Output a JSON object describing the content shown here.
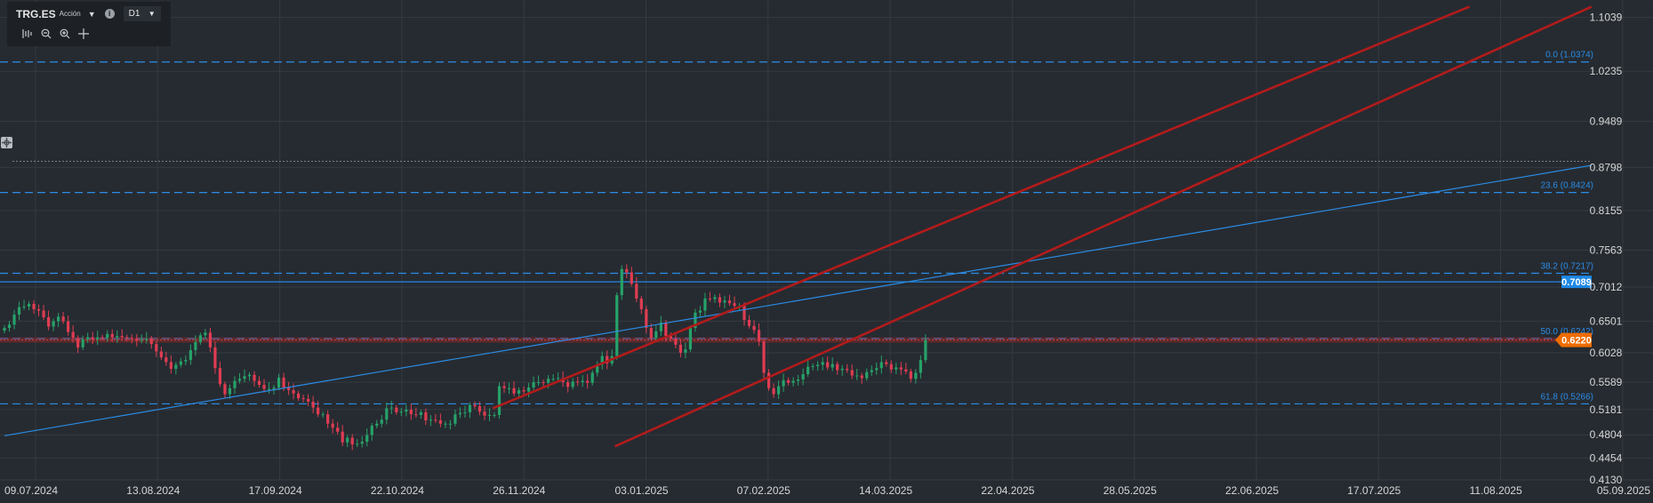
{
  "toolbar": {
    "symbol": "TRG.ES",
    "instrument_type": "Acción",
    "timeframe": "D1",
    "info_icon": "info-icon",
    "tools": [
      "auto-fit-icon",
      "zoom-out-icon",
      "zoom-in-icon",
      "crosshair-icon"
    ]
  },
  "colors": {
    "background": "#262b31",
    "grid": "#353a41",
    "bull": "#26a269",
    "bear": "#e03c52",
    "fib": "#2b8ce6",
    "trend_blue": "#2b8ce6",
    "channel_red": "#b31b1b",
    "price_tag": "#ef6c00",
    "level_tag": "#1e88e5",
    "axis_text": "#d6d6d6"
  },
  "chart_data": {
    "type": "candlestick",
    "x_ticks": [
      "09.07.2024",
      "13.08.2024",
      "17.09.2024",
      "22.10.2024",
      "26.11.2024",
      "03.01.2025",
      "07.02.2025",
      "14.03.2025",
      "22.04.2025",
      "28.05.2025",
      "22.06.2025",
      "17.07.2025",
      "11.08.2025",
      "05.09.2025"
    ],
    "y_ticks": [
      "1.1039",
      "1.0235",
      "0.9489",
      "0.8798",
      "0.8155",
      "0.7563",
      "0.7012",
      "0.6501",
      "0.6028",
      "0.5589",
      "0.5181",
      "0.4804",
      "0.4454",
      "0.4130"
    ],
    "ylim": [
      0.413,
      1.13
    ],
    "fib_levels": [
      {
        "label": "0.0 (1.0374)",
        "value": 1.0374
      },
      {
        "label": "23.6 (0.8424)",
        "value": 0.8424
      },
      {
        "label": "38.2 (0.7217)",
        "value": 0.7217
      },
      {
        "label": "50.0 (0.6242)",
        "value": 0.6242
      },
      {
        "label": "61.8 (0.5266)",
        "value": 0.5266
      }
    ],
    "horizontal_line": {
      "value": 0.7089,
      "label": "0.7089"
    },
    "current_price": {
      "value": 0.622,
      "label": "0.6220"
    },
    "closes": [
      0.64,
      0.645,
      0.66,
      0.671,
      0.672,
      0.676,
      0.668,
      0.666,
      0.656,
      0.642,
      0.65,
      0.657,
      0.65,
      0.634,
      0.625,
      0.611,
      0.623,
      0.626,
      0.623,
      0.626,
      0.625,
      0.631,
      0.626,
      0.628,
      0.626,
      0.625,
      0.624,
      0.621,
      0.622,
      0.624,
      0.616,
      0.605,
      0.596,
      0.589,
      0.579,
      0.585,
      0.59,
      0.592,
      0.607,
      0.619,
      0.629,
      0.633,
      0.611,
      0.58,
      0.556,
      0.541,
      0.55,
      0.561,
      0.564,
      0.568,
      0.57,
      0.561,
      0.555,
      0.549,
      0.549,
      0.551,
      0.566,
      0.551,
      0.547,
      0.542,
      0.535,
      0.534,
      0.53,
      0.521,
      0.511,
      0.511,
      0.497,
      0.491,
      0.485,
      0.469,
      0.476,
      0.466,
      0.467,
      0.47,
      0.48,
      0.494,
      0.497,
      0.503,
      0.52,
      0.521,
      0.514,
      0.515,
      0.518,
      0.511,
      0.51,
      0.514,
      0.502,
      0.503,
      0.502,
      0.497,
      0.497,
      0.497,
      0.511,
      0.513,
      0.514,
      0.525,
      0.523,
      0.515,
      0.509,
      0.51,
      0.51,
      0.553,
      0.55,
      0.55,
      0.542,
      0.547,
      0.545,
      0.551,
      0.559,
      0.559,
      0.558,
      0.564,
      0.564,
      0.565,
      0.559,
      0.552,
      0.56,
      0.559,
      0.561,
      0.558,
      0.573,
      0.585,
      0.598,
      0.587,
      0.598,
      0.689,
      0.728,
      0.723,
      0.706,
      0.684,
      0.668,
      0.64,
      0.625,
      0.635,
      0.648,
      0.628,
      0.624,
      0.615,
      0.603,
      0.608,
      0.64,
      0.663,
      0.666,
      0.684,
      0.683,
      0.686,
      0.678,
      0.681,
      0.677,
      0.673,
      0.673,
      0.652,
      0.643,
      0.637,
      0.62,
      0.573,
      0.55,
      0.541,
      0.553,
      0.562,
      0.558,
      0.561,
      0.563,
      0.571,
      0.582,
      0.583,
      0.585,
      0.589,
      0.581,
      0.586,
      0.577,
      0.579,
      0.577,
      0.569,
      0.569,
      0.565,
      0.574,
      0.577,
      0.58,
      0.589,
      0.586,
      0.578,
      0.581,
      0.578,
      0.575,
      0.564,
      0.573,
      0.592,
      0.622
    ],
    "trend_line": {
      "start": [
        "09.07.2024",
        0.479
      ],
      "end": [
        "05.09.2025",
        0.883
      ]
    },
    "channel_upper": {
      "start": [
        "26.11.2024",
        0.52
      ],
      "end": [
        "11.08.2025",
        1.12
      ]
    },
    "channel_lower": {
      "start": [
        "03.01.2025",
        0.463
      ],
      "end": [
        "05.09.2025",
        1.12
      ]
    }
  }
}
